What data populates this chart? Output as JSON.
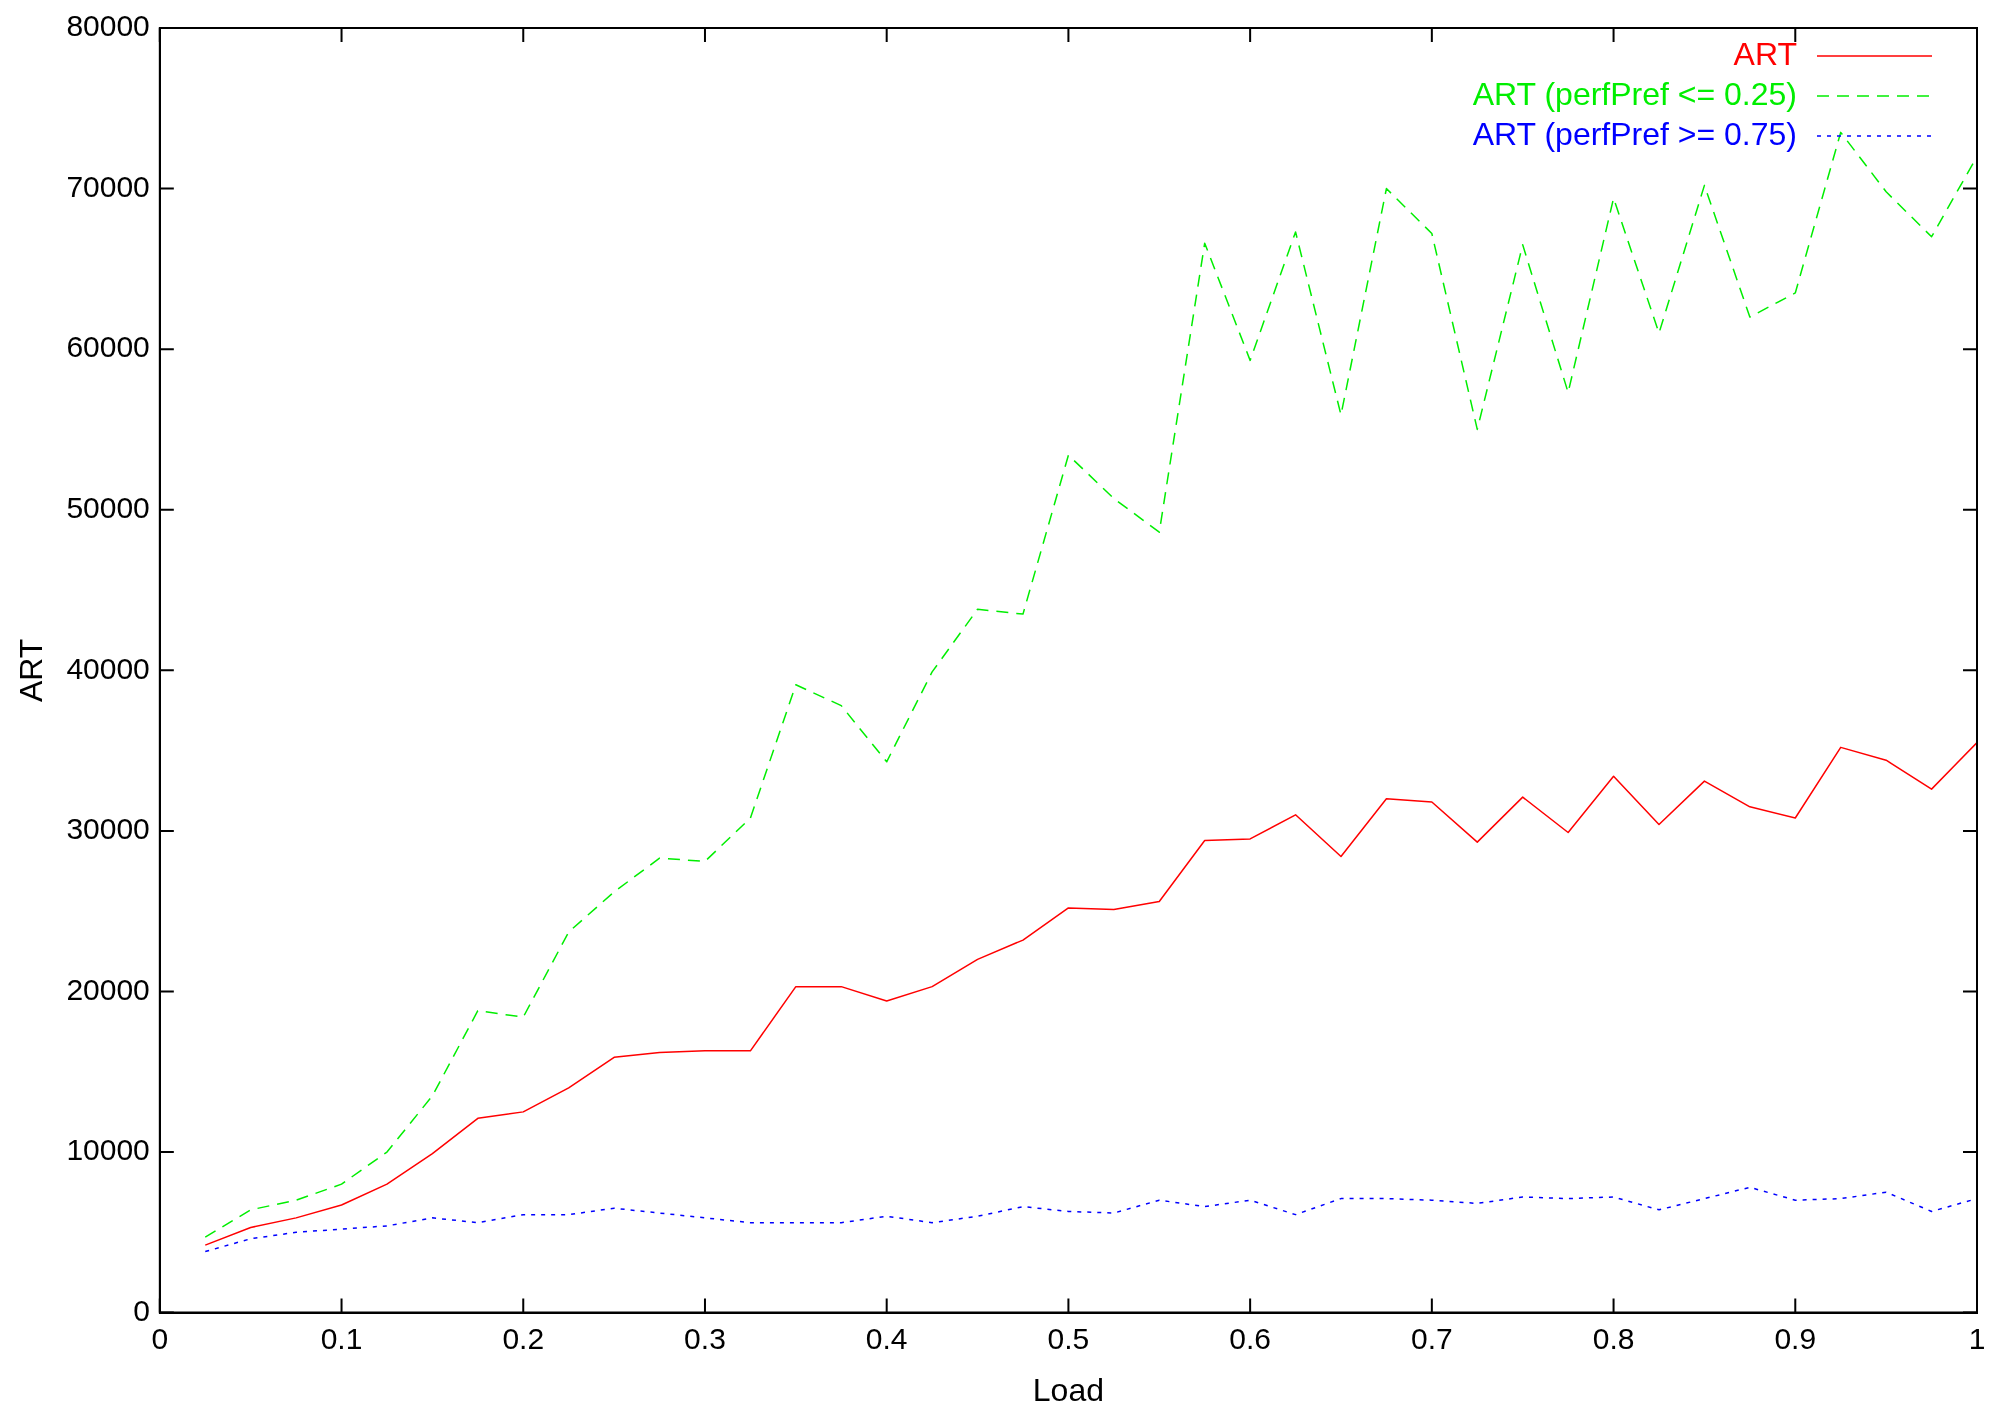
{
  "chart_data": {
    "type": "line",
    "xlabel": "Load",
    "ylabel": "ART",
    "legend": "top right",
    "grid": false,
    "x": [
      0.025,
      0.05,
      0.075,
      0.1,
      0.125,
      0.15,
      0.175,
      0.2,
      0.225,
      0.25,
      0.275,
      0.3,
      0.325,
      0.35,
      0.375,
      0.4,
      0.425,
      0.45,
      0.475,
      0.5,
      0.525,
      0.55,
      0.575,
      0.6,
      0.625,
      0.65,
      0.675,
      0.7,
      0.725,
      0.75,
      0.775,
      0.8,
      0.825,
      0.85,
      0.875,
      0.9,
      0.925,
      0.95,
      0.975,
      1.0
    ],
    "xlim": [
      0,
      1
    ],
    "xticks": [
      0,
      0.1,
      0.2,
      0.3,
      0.4,
      0.5,
      0.6,
      0.7,
      0.8,
      0.9,
      1
    ],
    "ylim": [
      0,
      80000
    ],
    "yticks": [
      0,
      10000,
      20000,
      30000,
      40000,
      50000,
      60000,
      70000,
      80000
    ],
    "series": [
      {
        "name": "ART",
        "color": "#ff0000",
        "line_style": "solid",
        "values": [
          4200,
          5300,
          5900,
          6700,
          8000,
          9900,
          12100,
          12500,
          14000,
          15900,
          16200,
          16300,
          16300,
          20300,
          20300,
          19400,
          20300,
          22000,
          23200,
          25200,
          25100,
          25600,
          29400,
          29500,
          31000,
          28400,
          32000,
          31800,
          29300,
          32100,
          29900,
          33400,
          30400,
          33100,
          31500,
          30800,
          35200,
          34400,
          32600,
          35500
        ]
      },
      {
        "name": "ART (perfPref <= 0.25)",
        "color": "#00ee00",
        "line_style": "dashed",
        "values": [
          4700,
          6400,
          7000,
          8000,
          10000,
          13500,
          18800,
          18400,
          23700,
          26200,
          28300,
          28100,
          30800,
          39100,
          37800,
          34300,
          39900,
          43800,
          43500,
          53400,
          50700,
          48600,
          66600,
          59300,
          67300,
          55900,
          70000,
          67200,
          55000,
          66500,
          57300,
          69400,
          61000,
          70200,
          62000,
          63500,
          73500,
          69800,
          67000,
          72000
        ]
      },
      {
        "name": "ART (perfPref >= 0.75)",
        "color": "#0000ff",
        "line_style": "dotted",
        "values": [
          3800,
          4600,
          5000,
          5200,
          5400,
          5900,
          5600,
          6100,
          6100,
          6500,
          6200,
          5900,
          5600,
          5600,
          5600,
          6000,
          5600,
          6000,
          6600,
          6300,
          6200,
          7000,
          6600,
          7000,
          6100,
          7100,
          7100,
          7000,
          6800,
          7200,
          7100,
          7200,
          6400,
          7100,
          7800,
          7000,
          7100,
          7500,
          6300,
          7100
        ]
      }
    ]
  }
}
